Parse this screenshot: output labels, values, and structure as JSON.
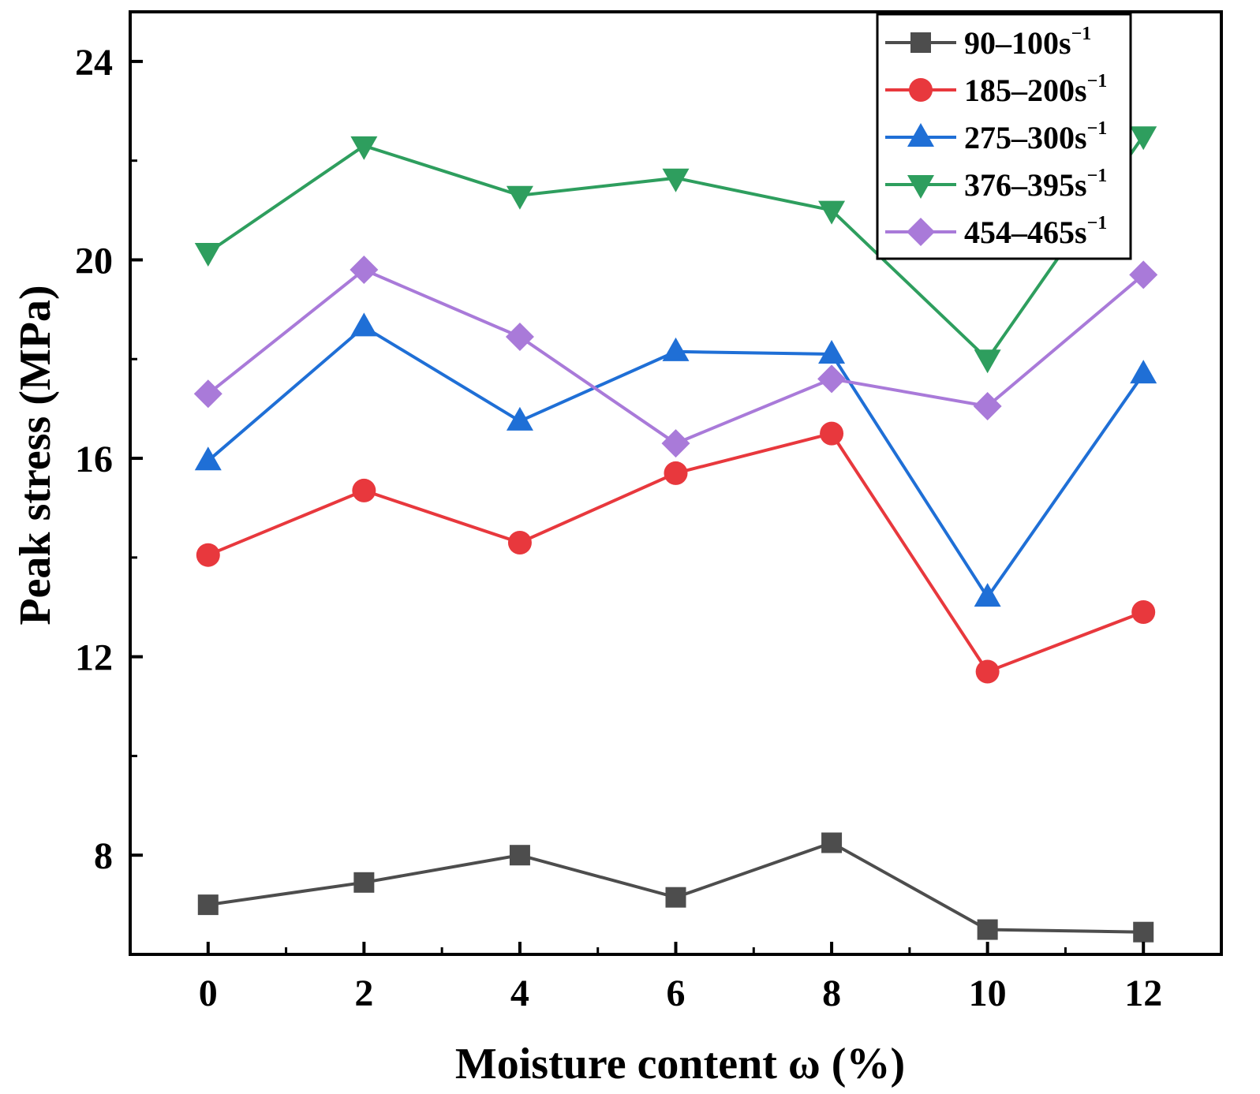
{
  "chart_data": {
    "type": "line",
    "title": "",
    "xlabel": "Moisture content ω (%)",
    "ylabel": "Peak stress (MPa)",
    "x": [
      0,
      2,
      4,
      6,
      8,
      10,
      12
    ],
    "xlim": [
      -1,
      13
    ],
    "ylim": [
      6,
      25
    ],
    "xticks": [
      0,
      2,
      4,
      6,
      8,
      10,
      12
    ],
    "yticks": [
      8,
      12,
      16,
      20,
      24
    ],
    "legend_position": "top-right",
    "grid": false,
    "series": [
      {
        "name": "90–100s",
        "name_sup": "−1",
        "color": "#4d4d4d",
        "marker": "square",
        "values": [
          7.0,
          7.45,
          8.0,
          7.15,
          8.25,
          6.5,
          6.45
        ]
      },
      {
        "name": "185–200s",
        "name_sup": "−1",
        "color": "#e8383d",
        "marker": "circle",
        "values": [
          14.05,
          15.35,
          14.3,
          15.7,
          16.5,
          11.7,
          12.9
        ]
      },
      {
        "name": "275–300s",
        "name_sup": "−1",
        "color": "#1f6fd6",
        "marker": "triangle-up",
        "values": [
          15.95,
          18.65,
          16.75,
          18.15,
          18.1,
          13.2,
          17.7
        ]
      },
      {
        "name": "376–395s",
        "name_sup": "−1",
        "color": "#2e9e5e",
        "marker": "triangle-down",
        "values": [
          20.15,
          22.3,
          21.3,
          21.65,
          21.0,
          18.0,
          22.5
        ]
      },
      {
        "name": "454–465s",
        "name_sup": "−1",
        "color": "#a97ad9",
        "marker": "diamond",
        "values": [
          17.3,
          19.8,
          18.45,
          16.3,
          17.6,
          17.05,
          19.7
        ]
      }
    ]
  }
}
